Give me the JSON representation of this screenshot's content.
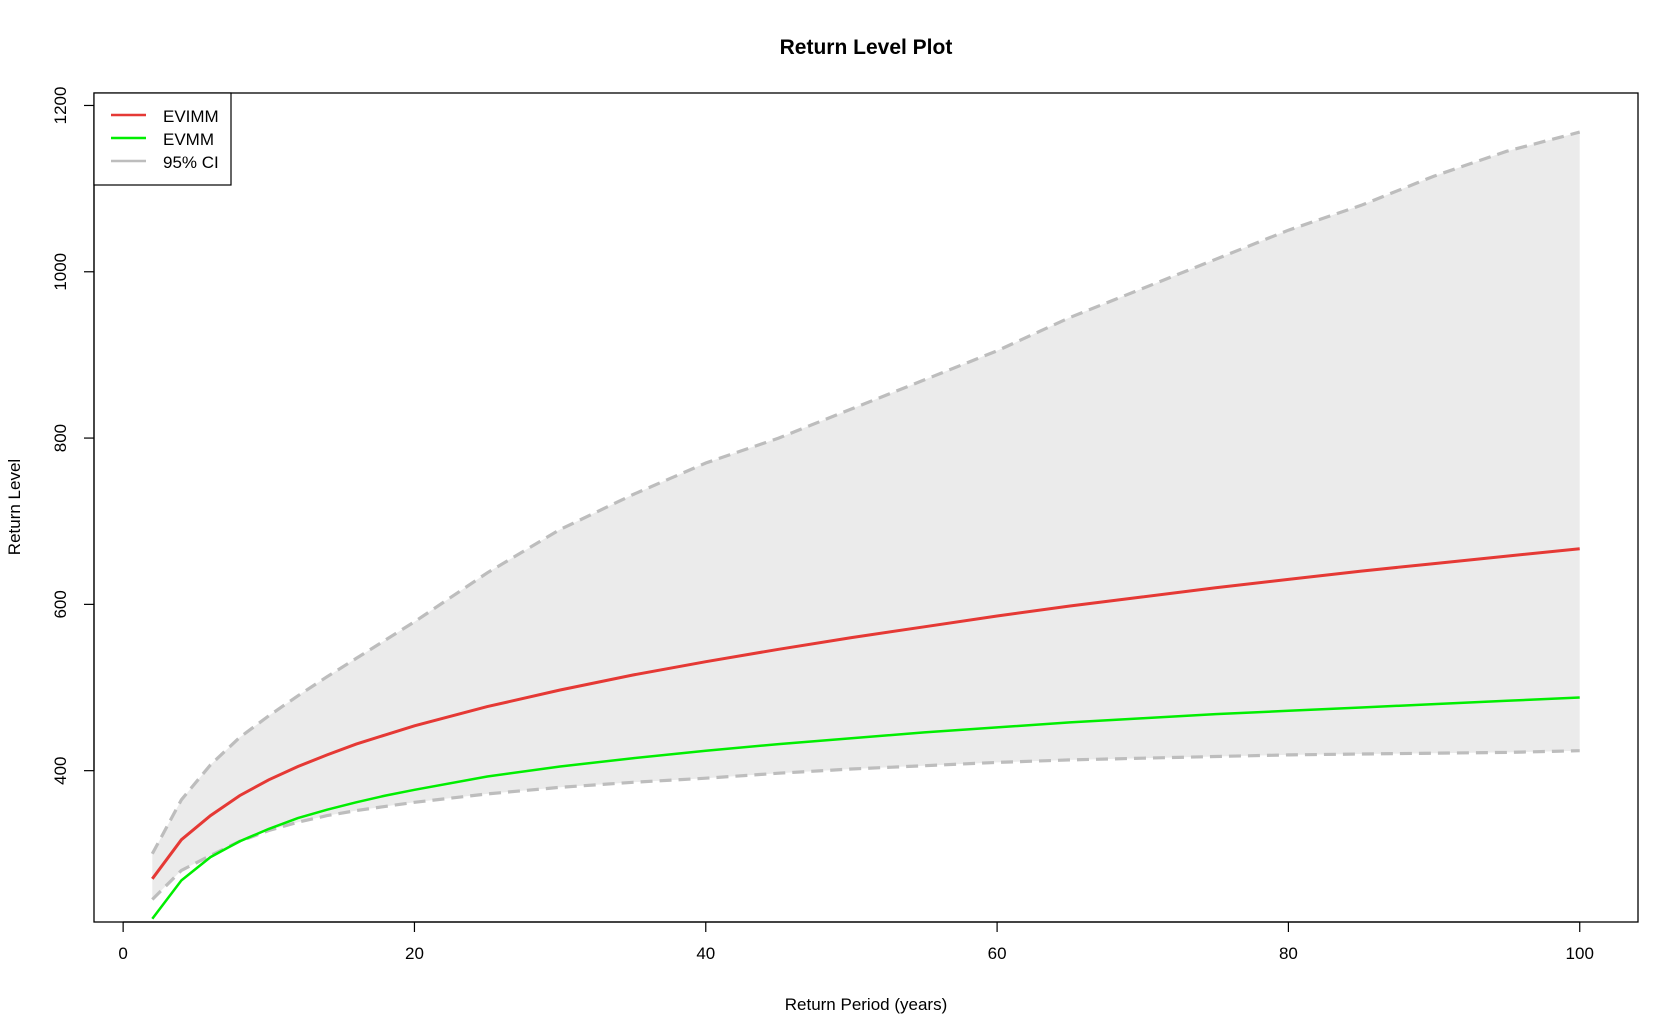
{
  "chart_data": {
    "type": "line",
    "title": "Return Level Plot",
    "xlabel": "Return Period (years)",
    "ylabel": "Return Level",
    "xlim": [
      -2,
      104
    ],
    "ylim": [
      218,
      1215
    ],
    "xticks": [
      0,
      20,
      40,
      60,
      80,
      100
    ],
    "yticks": [
      400,
      600,
      800,
      1000,
      1200
    ],
    "xtick_labels": [
      "0",
      "20",
      "40",
      "60",
      "80",
      "100"
    ],
    "ytick_labels": [
      "400",
      "600",
      "800",
      "1000",
      "1200"
    ],
    "grid": false,
    "legend_position": "top-left",
    "legend": [
      {
        "label": "EVIMM",
        "color": "#e53935",
        "style": "solid"
      },
      {
        "label": "EVMM",
        "color": "#00ee00",
        "style": "solid"
      },
      {
        "label": "95% CI",
        "color": "#bdbdbd",
        "style": "solid"
      }
    ],
    "x": [
      2,
      4,
      6,
      8,
      10,
      12,
      14,
      16,
      18,
      20,
      25,
      30,
      35,
      40,
      45,
      50,
      55,
      60,
      65,
      70,
      75,
      80,
      85,
      90,
      95,
      100
    ],
    "series": [
      {
        "name": "EVIMM",
        "color": "#e53935",
        "values": [
          270,
          317,
          346,
          370,
          389,
          405,
          419,
          432,
          443,
          454,
          477,
          497,
          515,
          531,
          546,
          560,
          573,
          586,
          598,
          609,
          620,
          630,
          640,
          649,
          658,
          667
        ]
      },
      {
        "name": "EVMM",
        "color": "#00ee00",
        "values": [
          222,
          268,
          296,
          315,
          330,
          343,
          353,
          362,
          370,
          377,
          393,
          405,
          415,
          424,
          432,
          439,
          446,
          452,
          458,
          463,
          468,
          472,
          476,
          480,
          484,
          488
        ]
      },
      {
        "name": "95% CI upper",
        "color": "#bdbdbd",
        "values": [
          300,
          365,
          407,
          440,
          466,
          490,
          513,
          535,
          557,
          579,
          638,
          690,
          732,
          770,
          800,
          835,
          870,
          905,
          945,
          980,
          1015,
          1050,
          1080,
          1115,
          1145,
          1168
        ]
      },
      {
        "name": "95% CI lower",
        "color": "#bdbdbd",
        "values": [
          245,
          280,
          298,
          315,
          328,
          338,
          346,
          352,
          357,
          362,
          372,
          380,
          386,
          391,
          397,
          402,
          406,
          410,
          413,
          415,
          417,
          419,
          420,
          421,
          422,
          424
        ]
      }
    ]
  }
}
